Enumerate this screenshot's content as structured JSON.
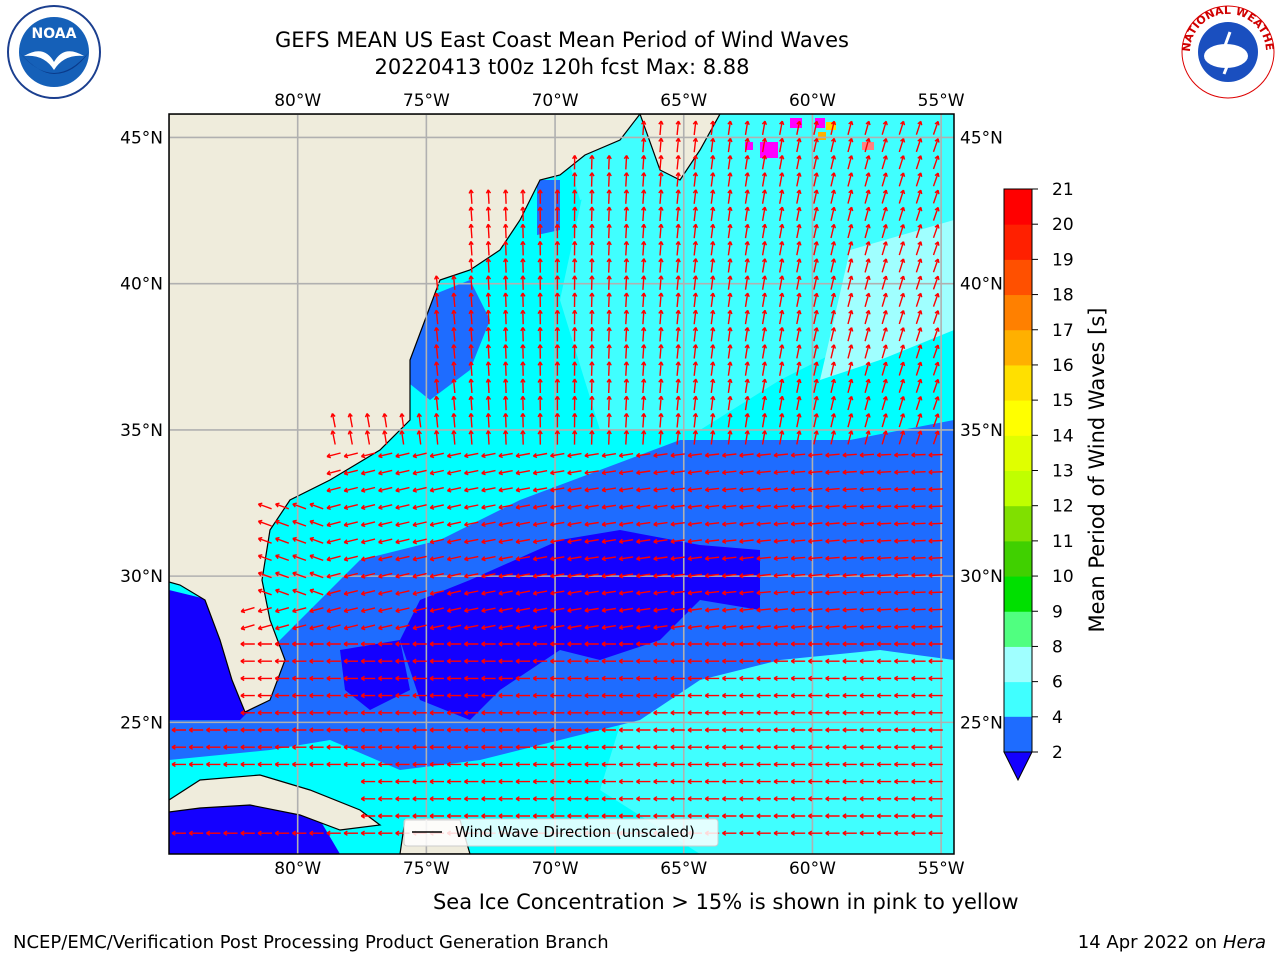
{
  "header": {
    "title_line1": "GEFS MEAN US East Coast Mean Period of Wind Waves",
    "title_line2": "20220413 t00z 120h fcst   Max: 8.88"
  },
  "map": {
    "lon_labels": [
      "80°W",
      "75°W",
      "70°W",
      "65°W",
      "60°W",
      "55°W"
    ],
    "lat_labels": [
      "45°N",
      "40°N",
      "35°N",
      "30°N",
      "25°N"
    ],
    "extent": {
      "lon": [
        -85,
        -54.5
      ],
      "lat": [
        20.5,
        45.8
      ]
    },
    "legend_label": "Wind Wave Direction (unscaled)",
    "arrow_color": "#ff0000",
    "land_color": "#efecdc",
    "field_max": 8.88
  },
  "colorbar": {
    "label": "Mean Period of Wind Waves [s]",
    "ticks": [
      "2",
      "4",
      "6",
      "8",
      "9",
      "10",
      "11",
      "12",
      "13",
      "14",
      "15",
      "16",
      "17",
      "18",
      "19",
      "20",
      "21"
    ],
    "colors": [
      "#1e6cff",
      "#00ffff",
      "#40ffff",
      "#a0ffff",
      "#50ff80",
      "#00e000",
      "#40d000",
      "#80e000",
      "#c0ff00",
      "#e0ff00",
      "#ffff00",
      "#ffe000",
      "#ffb000",
      "#ff8000",
      "#ff5000",
      "#ff2000",
      "#ff0000"
    ],
    "under_color": "#1400ff"
  },
  "caption": "Sea Ice Concentration > 15% is shown in pink to yellow",
  "footer": {
    "left": "NCEP/EMC/Verification Post Processing Product Generation Branch",
    "date": "14 Apr 2022 on",
    "host": "Hera"
  },
  "logos": {
    "noaa_text": "NOAA",
    "nws_text": "NATIONAL WEATHER SERVICE"
  }
}
